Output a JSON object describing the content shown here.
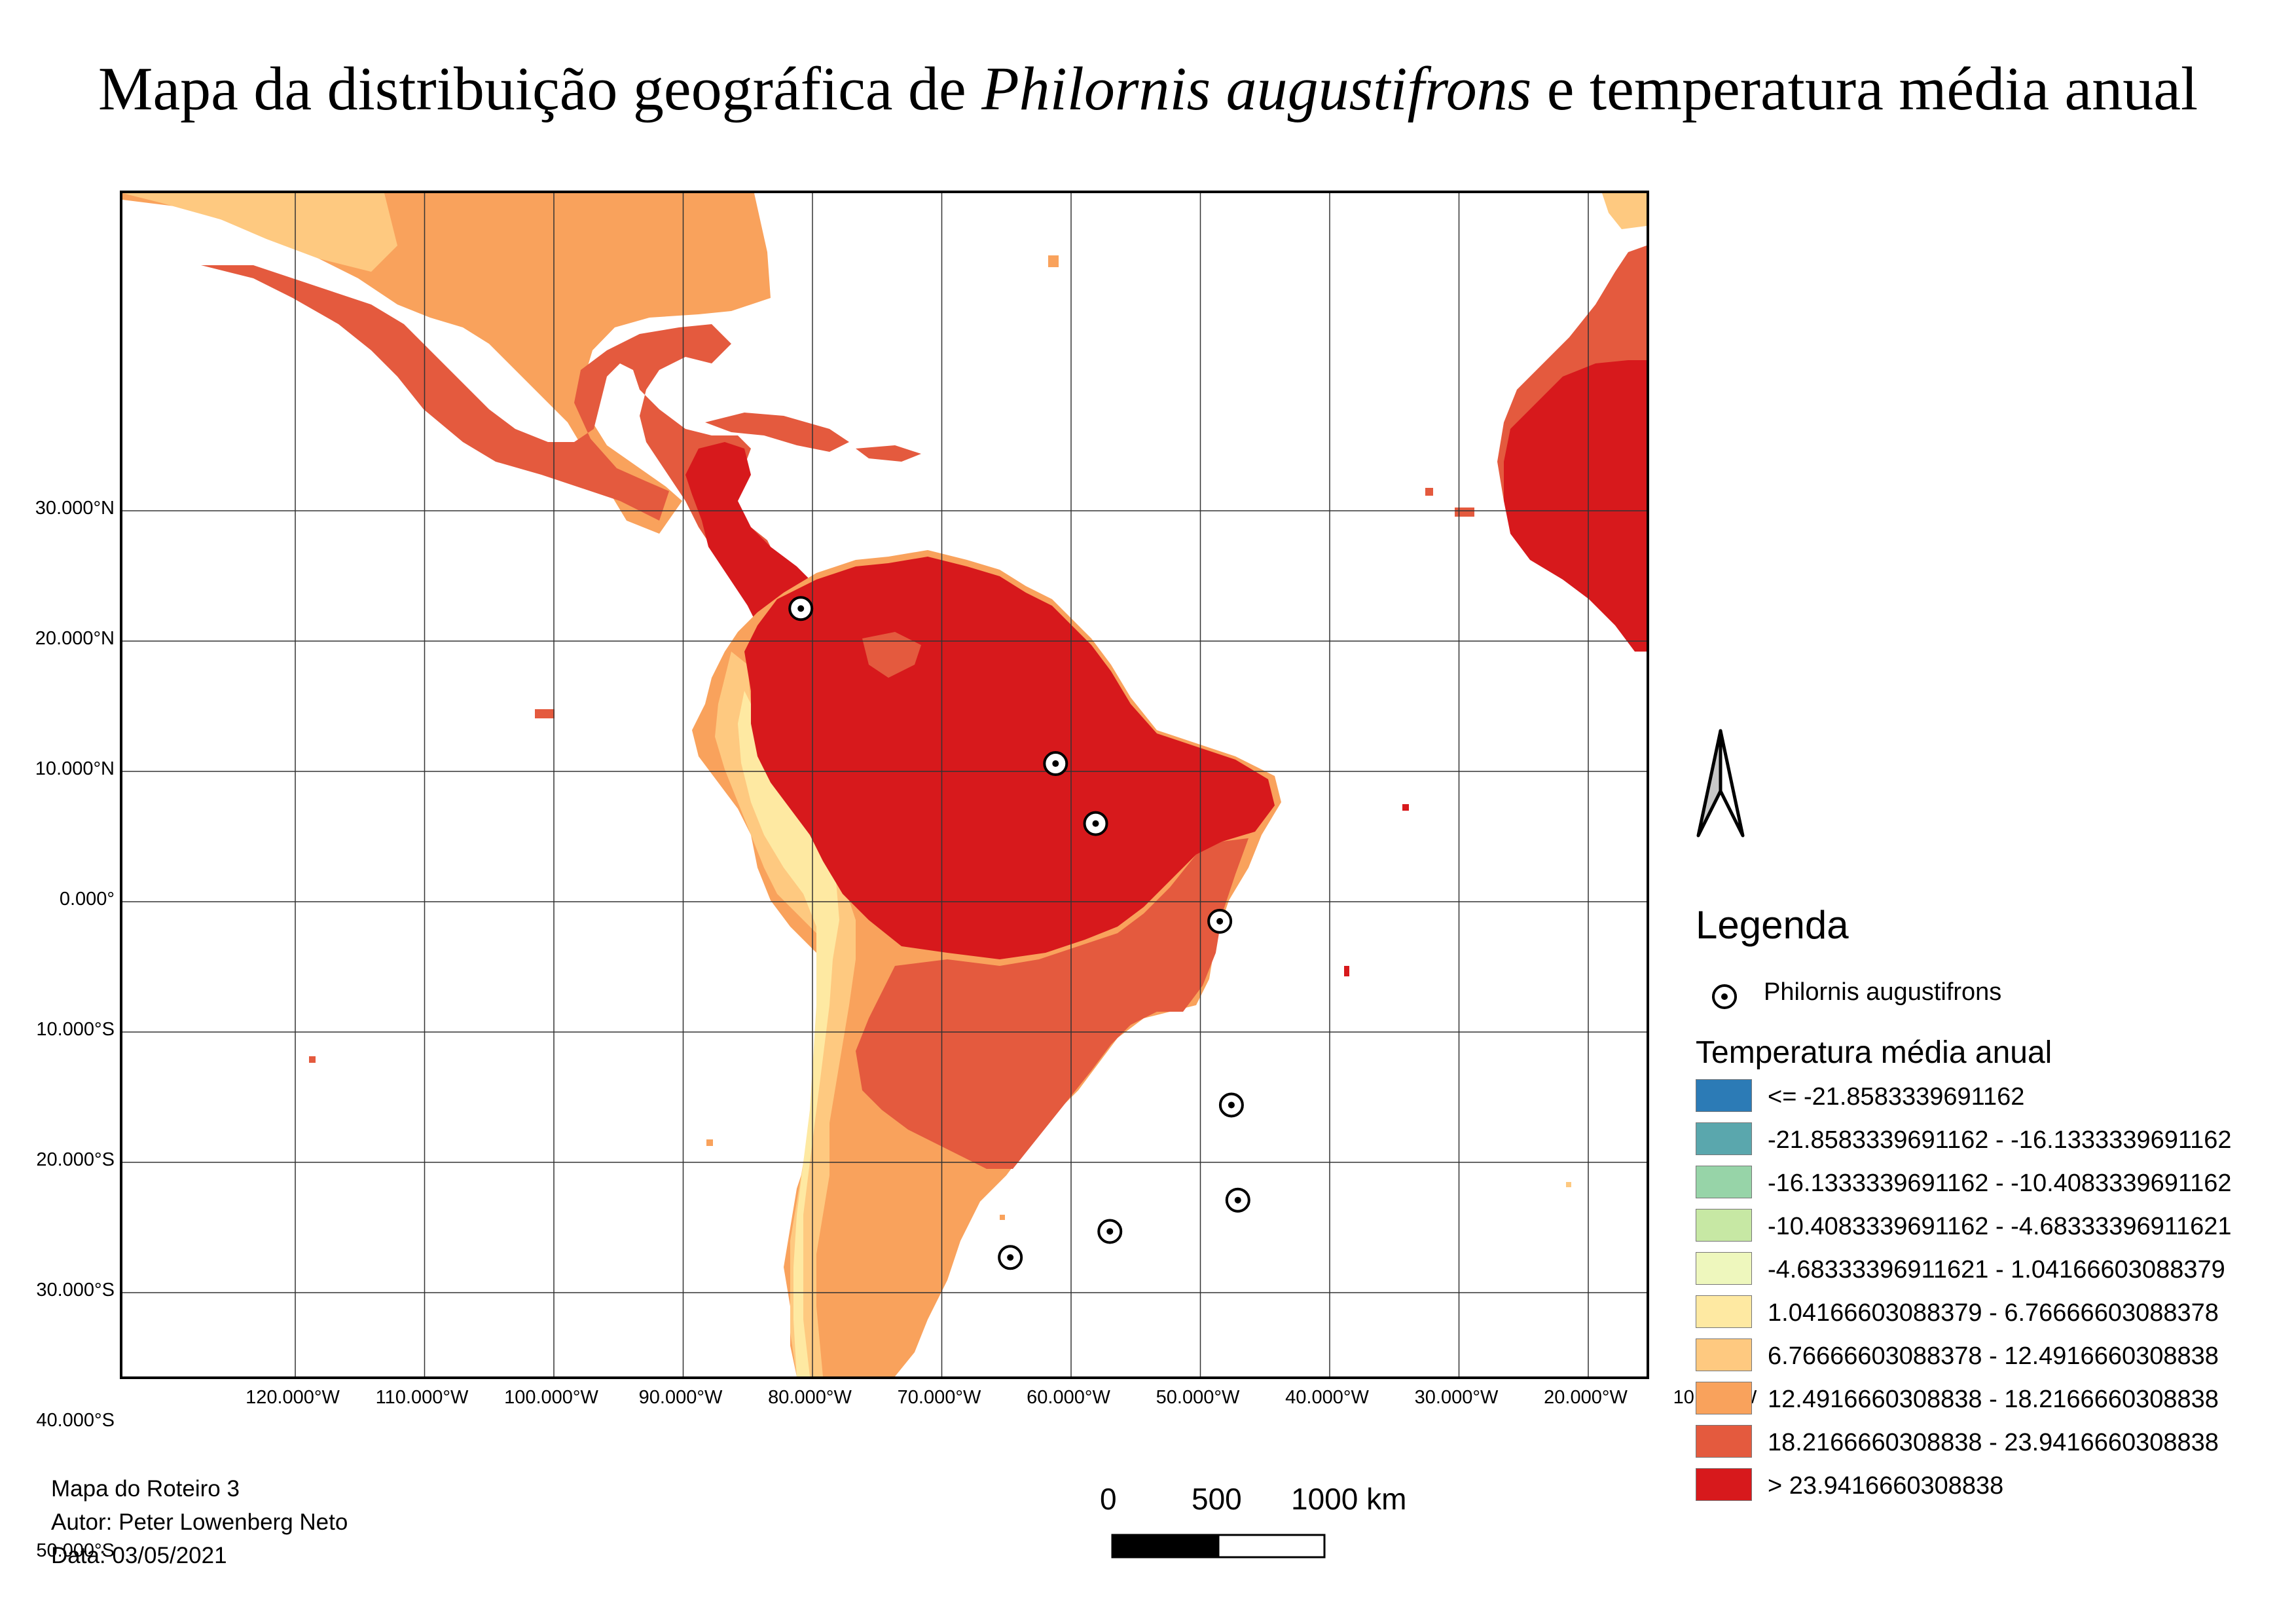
{
  "title": {
    "prefix": "Mapa da distribuição geográfica de ",
    "species": "Philornis augustifrons",
    "suffix": " e temperatura média anual"
  },
  "map": {
    "lat_labels": [
      "30.000°N",
      "20.000°N",
      "10.000°N",
      "0.000°",
      "10.000°S",
      "20.000°S",
      "30.000°S",
      "40.000°S",
      "50.000°S"
    ],
    "lon_labels": [
      "120.000°W",
      "110.000°W",
      "100.000°W",
      "90.000°W",
      "80.000°W",
      "70.000°W",
      "60.000°W",
      "50.000°W",
      "40.000°W",
      "30.000°W",
      "20.000°W",
      "10.000°W"
    ],
    "points_name": "Philornis augustifrons",
    "occurrence_points": [
      {
        "lon": -80.9,
        "lat": 22.5
      },
      {
        "lon": -61.2,
        "lat": 10.6
      },
      {
        "lon": -58.1,
        "lat": 6.0
      },
      {
        "lon": -48.5,
        "lat": -1.5
      },
      {
        "lon": -47.6,
        "lat": -15.6
      },
      {
        "lon": -47.1,
        "lat": -22.9
      },
      {
        "lon": -57.0,
        "lat": -25.3
      },
      {
        "lon": -64.7,
        "lat": -27.3
      }
    ]
  },
  "north_arrow": {
    "icon": "north-arrow-icon"
  },
  "legend": {
    "title": "Legenda",
    "point_label": "Philornis augustifrons",
    "raster_title": "Temperatura média anual",
    "classes": [
      {
        "label": "<= -21.8583339691162",
        "color": "#2c7bb6"
      },
      {
        "label": "-21.8583339691162 - -16.1333339691162",
        "color": "#5aa7ad"
      },
      {
        "label": "-16.1333339691162 - -10.4083339691162",
        "color": "#97d4a8"
      },
      {
        "label": "-10.4083339691162 - -4.68333396911621",
        "color": "#c7e8a4"
      },
      {
        "label": "-4.68333396911621 - 1.04166603088379",
        "color": "#eef7bd"
      },
      {
        "label": "1.04166603088379 - 6.76666603088378",
        "color": "#fee9a2"
      },
      {
        "label": "6.76666603088378 - 12.4916660308838",
        "color": "#fec980"
      },
      {
        "label": "12.4916660308838 - 18.2166660308838",
        "color": "#f9a25c"
      },
      {
        "label": "18.2166660308838 - 23.9416660308838",
        "color": "#e45a3e"
      },
      {
        "label": "> 23.9416660308838",
        "color": "#d7191c"
      }
    ]
  },
  "credits": {
    "line1": "Mapa do Roteiro 3",
    "line2": "Autor: Peter Lowenberg Neto",
    "line3": "Data: 03/05/2021"
  },
  "scale": {
    "zero": "0",
    "mid": "500",
    "end": "1000 km"
  }
}
